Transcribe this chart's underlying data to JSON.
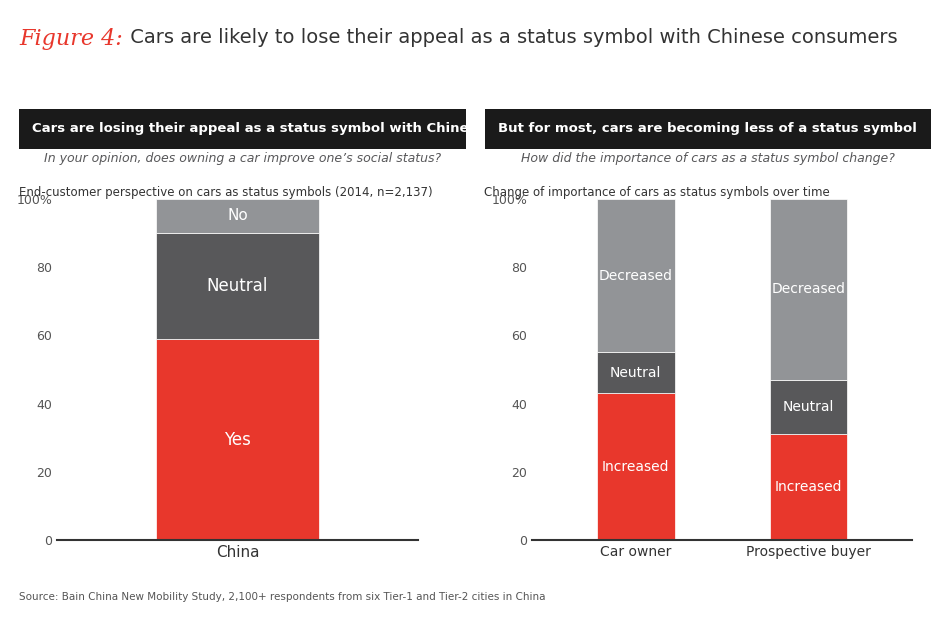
{
  "title_figure": "Figure 4:",
  "title_rest": " Cars are likely to lose their appeal as a status symbol with Chinese consumers",
  "left_header": "Cars are losing their appeal as a status symbol with Chinese consumers",
  "right_header": "But for most, cars are becoming less of a status symbol",
  "left_subheader": "In your opinion, does owning a car improve one’s social status?",
  "right_subheader": "How did the importance of cars as a status symbol change?",
  "left_chart_label": "End-customer perspective on cars as status symbols (2014, n=2,137)",
  "right_chart_label": "Change of importance of cars as status symbols over time",
  "source": "Source: Bain China New Mobility Study, 2,100+ respondents from six Tier-1 and Tier-2 cities in China",
  "left_bars": {
    "categories": [
      "China"
    ],
    "Yes": [
      59
    ],
    "Neutral": [
      31
    ],
    "No": [
      10
    ]
  },
  "right_bars": {
    "categories": [
      "Car owner",
      "Prospective buyer"
    ],
    "Increased": [
      43,
      31
    ],
    "Neutral": [
      12,
      16
    ],
    "Decreased": [
      45,
      53
    ]
  },
  "color_red": "#E8372C",
  "color_dark_gray": "#58585A",
  "color_light_gray": "#929497",
  "color_header_bg": "#1A1A1A",
  "color_header_text": "#FFFFFF",
  "color_figure_num": "#E8372C",
  "color_subheader_text": "#58585A",
  "background_color": "#FFFFFF"
}
